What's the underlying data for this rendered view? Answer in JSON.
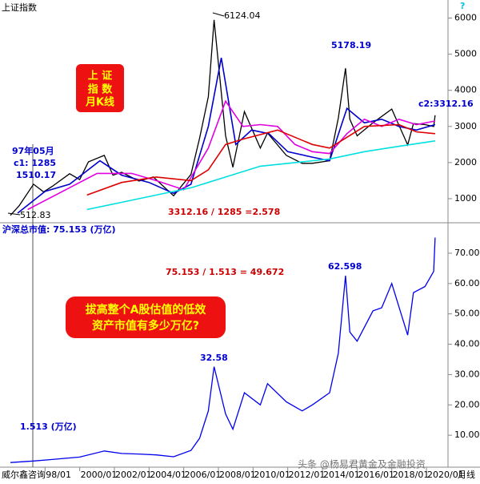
{
  "chart_data": [
    {
      "type": "line",
      "title": "上证指数",
      "series": [
        {
          "color": "#000000",
          "x": [
            "1996/01",
            "1996/07",
            "1997/05",
            "1997/12",
            "1998/06",
            "1999/06",
            "2000/01",
            "2000/07",
            "2001/06",
            "2001/12",
            "2002/06",
            "2003/06",
            "2004/04",
            "2005/06",
            "2006/06",
            "2006/12",
            "2007/06",
            "2007/10",
            "2008/06",
            "2008/11",
            "2009/07",
            "2010/06",
            "2010/11",
            "2011/12",
            "2012/11",
            "2013/06",
            "2014/06",
            "2014/12",
            "2015/05",
            "2015/08",
            "2016/01",
            "2016/12",
            "2018/01",
            "2018/12",
            "2019/04",
            "2019/12",
            "2020/06",
            "2020/07"
          ],
          "values": [
            540,
            800,
            1400,
            1190,
            1340,
            1690,
            1530,
            2020,
            2200,
            1650,
            1730,
            1490,
            1600,
            1080,
            1670,
            2675,
            3820,
            5950,
            2740,
            1870,
            3410,
            2400,
            2820,
            2200,
            1980,
            1980,
            2050,
            3230,
            4610,
            3200,
            2740,
            3100,
            3480,
            2490,
            3080,
            3050,
            3000,
            3310
          ]
        },
        {
          "color": "#0000cc",
          "x": [
            "1996/06",
            "1998/01",
            "1999/06",
            "2001/03",
            "2002/06",
            "2004/01",
            "2005/06",
            "2006/06",
            "2007/06",
            "2008/03",
            "2009/01",
            "2009/12",
            "2010/12",
            "2012/01",
            "2013/06",
            "2014/06",
            "2015/06",
            "2016/06",
            "2017/06",
            "2018/06",
            "2019/06",
            "2020/07"
          ],
          "values": [
            600,
            1200,
            1400,
            2050,
            1650,
            1450,
            1150,
            1400,
            3000,
            4900,
            2500,
            2900,
            2800,
            2300,
            2150,
            2050,
            3500,
            3100,
            3200,
            3000,
            2900,
            3050
          ]
        },
        {
          "color": "#e000e0",
          "x": [
            "1997/01",
            "1999/01",
            "2001/01",
            "2003/01",
            "2004/06",
            "2006/01",
            "2007/06",
            "2008/06",
            "2009/06",
            "2010/06",
            "2011/06",
            "2012/06",
            "2013/06",
            "2014/06",
            "2015/06",
            "2016/06",
            "2017/06",
            "2018/06",
            "2019/06",
            "2020/07"
          ],
          "values": [
            700,
            1200,
            1700,
            1700,
            1500,
            1250,
            2400,
            3700,
            3000,
            3050,
            3000,
            2500,
            2300,
            2250,
            2800,
            3200,
            3000,
            3200,
            3050,
            3150
          ]
        },
        {
          "color": "#dd0000",
          "x": [
            "2000/06",
            "2002/06",
            "2004/06",
            "2006/06",
            "2007/06",
            "2008/06",
            "2009/06",
            "2011/06",
            "2013/06",
            "2014/06",
            "2015/06",
            "2016/06",
            "2018/06",
            "2019/06",
            "2020/07"
          ],
          "values": [
            1100,
            1450,
            1600,
            1500,
            1800,
            2500,
            2650,
            2900,
            2500,
            2400,
            2700,
            3000,
            3050,
            2850,
            2800
          ]
        },
        {
          "color": "#00e0e0",
          "x": [
            "2000/06",
            "2002/06",
            "2004/06",
            "2006/06",
            "2008/06",
            "2010/06",
            "2012/06",
            "2014/06",
            "2016/06",
            "2018/06",
            "2020/07"
          ],
          "values": [
            700,
            900,
            1100,
            1300,
            1600,
            1900,
            2000,
            2100,
            2300,
            2450,
            2600
          ]
        }
      ],
      "ylim": [
        400,
        6500
      ],
      "yticks": [
        1000,
        2000,
        3000,
        4000,
        5000,
        6000
      ],
      "annotations": [
        "?",
        "6124.04",
        "5178.19",
        "c2:3312.16",
        "97年05月",
        "c1: 1285",
        "1510.17",
        "512.83",
        "3312.16 / 1285 =2.578",
        "上 证",
        "指 数",
        "月K线"
      ]
    },
    {
      "type": "line",
      "title": "沪深总市值: 75.153 (万亿)",
      "series": [
        {
          "color": "#0000ee",
          "x": [
            "1996/01",
            "1997/05",
            "1998/06",
            "2000/01",
            "2001/06",
            "2002/06",
            "2003/06",
            "2004/06",
            "2005/06",
            "2006/06",
            "2006/12",
            "2007/06",
            "2007/10",
            "2008/06",
            "2008/11",
            "2009/07",
            "2010/06",
            "2010/11",
            "2011/12",
            "2012/11",
            "2013/06",
            "2014/06",
            "2014/12",
            "2015/05",
            "2015/08",
            "2016/01",
            "2016/12",
            "2017/06",
            "2018/01",
            "2018/12",
            "2019/04",
            "2019/12",
            "2020/06",
            "2020/07"
          ],
          "values": [
            1.0,
            1.513,
            2.0,
            2.8,
            4.8,
            4.0,
            3.8,
            3.5,
            2.9,
            5,
            9,
            18,
            32.58,
            17,
            12,
            24,
            20,
            27,
            21,
            18,
            20,
            24,
            37,
            62.598,
            44,
            41,
            51,
            52,
            60,
            43,
            57,
            59,
            64,
            75.153
          ]
        }
      ],
      "ylim": [
        0,
        79.5
      ],
      "yticks": [
        {
          "value": 10,
          "label": "10.00"
        },
        {
          "value": 20,
          "label": "20.00"
        },
        {
          "value": 30,
          "label": "30.00"
        },
        {
          "value": 40,
          "label": "40.00"
        },
        {
          "value": 50,
          "label": "50.00"
        },
        {
          "value": 60,
          "label": "60.00"
        },
        {
          "value": 70,
          "label": "70.00"
        }
      ],
      "xticks": [
        {
          "value": "1998/01",
          "label": "98/01"
        },
        "2000/01",
        "2002/01",
        "2004/01",
        "2006/01",
        "2008/01",
        "2010/01",
        "2012/01",
        "2014/01",
        "2016/01",
        "2018/01",
        "2020/01"
      ],
      "annotations": [
        "75.153 / 1.513 = 49.672",
        "62.598",
        "32.58",
        "1.513 (万亿)",
        "拔高整个A股估值的低效",
        "资产市值有多少万亿?",
        "威尔鑫咨询",
        "月线",
        "头条 @杨易君黄金及金融投资"
      ]
    }
  ]
}
